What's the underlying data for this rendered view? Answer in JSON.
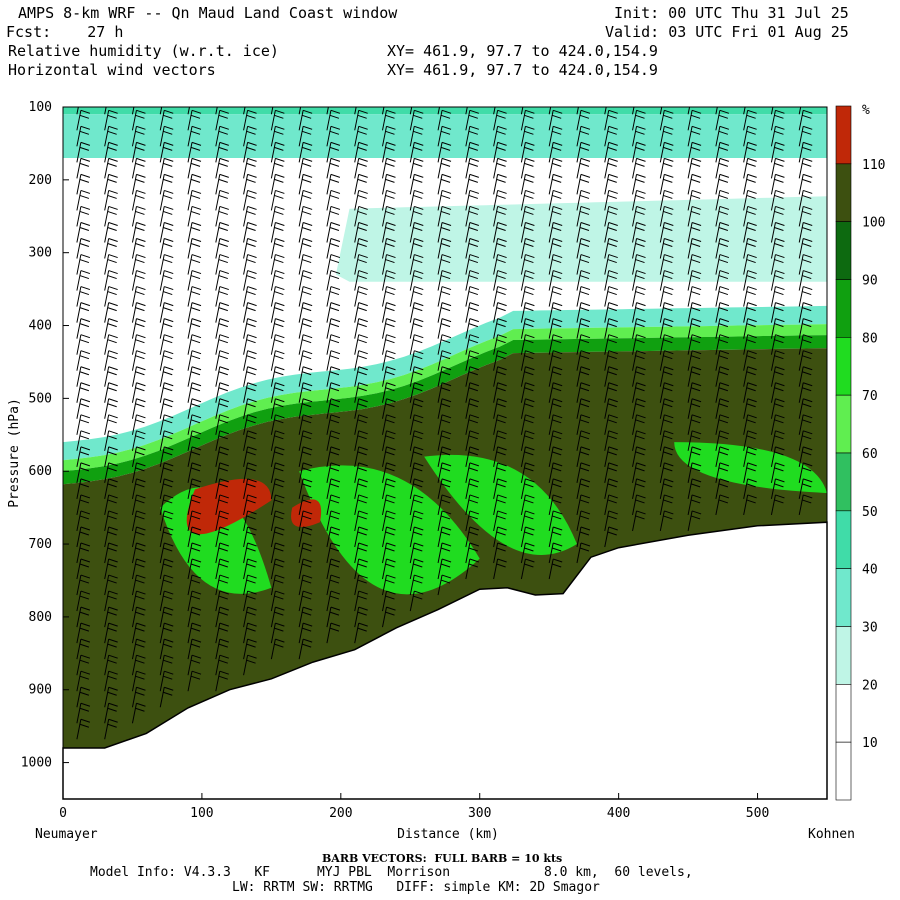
{
  "header": {
    "title": "AMPS 8-km WRF -- Qn Maud Land Coast window",
    "init": "Init: 00 UTC Thu 31 Jul 25",
    "fcst": "Fcst:    27 h",
    "valid": "Valid: 03 UTC Fri 01 Aug 25",
    "field1": "Relative humidity (w.r.t. ice)",
    "field1_xy": "XY= 461.9, 97.7 to 424.0,154.9",
    "field2": "Horizontal wind vectors",
    "field2_xy": "XY= 461.9, 97.7 to 424.0,154.9"
  },
  "footer": {
    "barb_note": "BARB VECTORS:  FULL BARB = 10 kts",
    "model_line1": "Model Info: V4.3.3   KF      MYJ PBL  Morrison            8.0 km,  60 levels,",
    "model_line2": "LW: RRTM SW: RRTMG   DIFF: simple KM: 2D Smagor"
  },
  "colors": {
    "c_10_20": "#ffffff",
    "c_30": "#bff5e6",
    "c_40": "#70e8cc",
    "c_50": "#40dca8",
    "c_60": "#30c060",
    "c_70": "#60ee50",
    "c_80": "#20dc20",
    "c_90": "#10a010",
    "c_100": "#0d6a10",
    "c_110": "#3d5010",
    "c_above": "#c02808",
    "terrain": "#ffffff"
  },
  "chart_data": {
    "type": "heatmap",
    "title": "Relative humidity (w.r.t. ice)",
    "overlay": "Horizontal wind vectors",
    "xlabel": "Distance (km)",
    "ylabel": "Pressure (hPa)",
    "x_left_label": "Neumayer",
    "x_right_label": "Kohnen",
    "xlim": [
      0,
      550
    ],
    "ylim": [
      1050,
      100
    ],
    "x_ticks": [
      0,
      100,
      200,
      300,
      400,
      500
    ],
    "y_ticks": [
      100,
      200,
      300,
      400,
      500,
      600,
      700,
      800,
      900,
      1000
    ],
    "colorbar_unit": "%",
    "colorbar_labels": [
      "10",
      "20",
      "30",
      "40",
      "50",
      "60",
      "70",
      "80",
      "90",
      "100",
      "110"
    ],
    "surface_pressure_profile": {
      "x_km": [
        0,
        30,
        60,
        90,
        120,
        150,
        180,
        210,
        240,
        270,
        300,
        320,
        340,
        360,
        380,
        400,
        450,
        500,
        550
      ],
      "pressure_hpa": [
        980,
        980,
        960,
        925,
        900,
        885,
        862,
        845,
        815,
        790,
        762,
        760,
        770,
        768,
        718,
        705,
        688,
        675,
        670
      ]
    }
  }
}
